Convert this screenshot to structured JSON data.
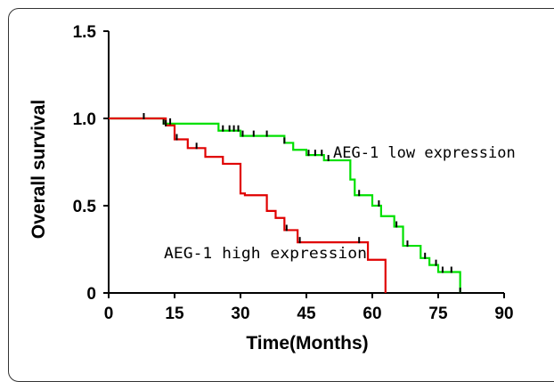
{
  "chart_data": {
    "type": "line",
    "title": "",
    "xlabel": "Time(Months)",
    "ylabel": "Overall survival",
    "xlim": [
      0,
      90
    ],
    "ylim": [
      0,
      1.5
    ],
    "xticks": [
      0,
      15,
      30,
      45,
      60,
      75,
      90
    ],
    "xtick_labels": [
      "0",
      "15",
      "30",
      "45",
      "60",
      "75",
      "90"
    ],
    "yticks": [
      0,
      0.5,
      1.0,
      1.5
    ],
    "ytick_labels": [
      "0",
      "0.5",
      "1.0",
      "1.5"
    ],
    "grid": false,
    "legend": "none",
    "series": [
      {
        "name": "AEG-1 low expression",
        "color": "#00e000",
        "x": [
          0,
          12.5,
          25,
          30,
          40,
          42,
          45,
          49,
          55,
          56,
          60,
          62,
          65,
          67,
          71,
          73,
          75,
          80,
          80
        ],
        "y": [
          1.0,
          0.97,
          0.93,
          0.9,
          0.86,
          0.82,
          0.79,
          0.76,
          0.65,
          0.56,
          0.5,
          0.44,
          0.38,
          0.27,
          0.2,
          0.16,
          0.12,
          0.12,
          0
        ],
        "censor_x": [
          12.5,
          14,
          26,
          27.5,
          28.5,
          29.5,
          30.5,
          33,
          36,
          40,
          45.5,
          47,
          48.5,
          50,
          57,
          61.5,
          65.5,
          68,
          72,
          74.5,
          76,
          78,
          80
        ]
      },
      {
        "name": "AEG-1 high expression",
        "color": "#e00000",
        "x": [
          0,
          13,
          15,
          18,
          22,
          26,
          30,
          31,
          36,
          38,
          40,
          43,
          59,
          63,
          63
        ],
        "y": [
          1.0,
          0.96,
          0.88,
          0.83,
          0.78,
          0.74,
          0.57,
          0.56,
          0.47,
          0.43,
          0.36,
          0.29,
          0.19,
          0.19,
          0
        ],
        "censor_x": [
          8,
          13,
          15.5,
          20,
          40.5,
          43.5,
          57
        ]
      }
    ],
    "annotations": [
      "AEG-1 low expression",
      "AEG-1 high expression"
    ]
  }
}
